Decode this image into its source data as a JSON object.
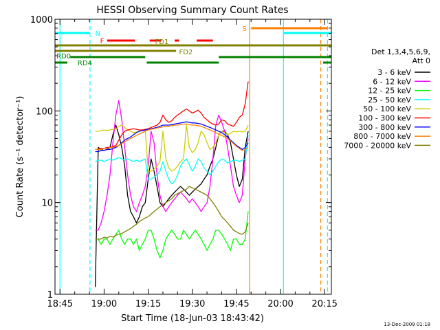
{
  "chart_data": {
    "type": "line",
    "title": "HESSI Observing Summary Count Rates",
    "xlabel": "Start Time (18-Jun-03 18:43:42)",
    "ylabel": "Count Rate (s⁻¹ detector⁻¹)",
    "y_scale": "log",
    "ylim": [
      1,
      1000
    ],
    "xlim_minutes": [
      -1.7,
      92.3
    ],
    "x_ticks": [
      {
        "label": "18:45",
        "minute": 0
      },
      {
        "label": "19:00",
        "minute": 15
      },
      {
        "label": "19:15",
        "minute": 30
      },
      {
        "label": "19:30",
        "minute": 45
      },
      {
        "label": "19:45",
        "minute": 60
      },
      {
        "label": "20:00",
        "minute": 75
      },
      {
        "label": "20:15",
        "minute": 90
      }
    ],
    "y_ticks": [
      {
        "label": "1",
        "value": 1
      },
      {
        "label": "10",
        "value": 10
      },
      {
        "label": "100",
        "value": 100
      },
      {
        "label": "1000",
        "value": 1000
      }
    ],
    "legend": {
      "header": [
        "Det 1,3,4,5,6,9,",
        "Att 0"
      ],
      "position": "right"
    },
    "series": [
      {
        "name": "3 - 6 keV",
        "color": "#000000",
        "x": [
          12,
          13,
          14,
          15,
          16,
          17,
          18,
          19,
          20,
          21,
          22,
          23,
          24,
          25,
          26,
          27,
          28,
          29,
          30,
          31,
          32,
          33,
          34,
          35,
          36,
          37,
          38,
          39,
          40,
          41,
          42,
          43,
          44,
          45,
          46,
          47,
          48,
          49,
          50,
          51,
          52,
          53,
          54,
          55,
          56,
          57,
          58,
          59,
          60,
          61,
          62,
          63,
          64
        ],
        "y": [
          1.2,
          40,
          38,
          37,
          38,
          40,
          55,
          70,
          55,
          40,
          25,
          12,
          8,
          7,
          6,
          7,
          9,
          10,
          18,
          30,
          22,
          15,
          10,
          9,
          10,
          11,
          12,
          13,
          14,
          15,
          14,
          13,
          12,
          13,
          14,
          15,
          16,
          18,
          20,
          25,
          30,
          40,
          55,
          60,
          60,
          55,
          45,
          30,
          20,
          15,
          18,
          40,
          60
        ]
      },
      {
        "name": "6 - 12 keV",
        "color": "#ff00ff",
        "x": [
          12,
          13,
          14,
          15,
          16,
          17,
          18,
          19,
          20,
          21,
          22,
          23,
          24,
          25,
          26,
          27,
          28,
          29,
          30,
          31,
          32,
          33,
          34,
          35,
          36,
          37,
          38,
          39,
          40,
          41,
          42,
          43,
          44,
          45,
          46,
          47,
          48,
          49,
          50,
          51,
          52,
          53,
          54,
          55,
          56,
          57,
          58,
          59,
          60,
          61,
          62,
          63,
          64
        ],
        "y": [
          5,
          5,
          6,
          8,
          12,
          20,
          45,
          90,
          130,
          80,
          40,
          20,
          12,
          9,
          8,
          10,
          12,
          15,
          25,
          60,
          45,
          20,
          12,
          9,
          8,
          9,
          10,
          11,
          12,
          13,
          12,
          11,
          10,
          11,
          10,
          9,
          8,
          9,
          10,
          15,
          30,
          70,
          90,
          75,
          60,
          40,
          25,
          15,
          12,
          10,
          12,
          30,
          50
        ]
      },
      {
        "name": "12 - 25 keV",
        "color": "#00ff00",
        "x": [
          12,
          13,
          14,
          15,
          16,
          17,
          18,
          19,
          20,
          21,
          22,
          23,
          24,
          25,
          26,
          27,
          28,
          29,
          30,
          31,
          32,
          33,
          34,
          35,
          36,
          37,
          38,
          39,
          40,
          41,
          42,
          43,
          44,
          45,
          46,
          47,
          48,
          49,
          50,
          51,
          52,
          53,
          54,
          55,
          56,
          57,
          58,
          59,
          60,
          61,
          62,
          63,
          64
        ],
        "y": [
          4,
          4,
          3.5,
          4,
          4,
          3.5,
          4,
          4.5,
          5,
          4,
          3.5,
          4,
          4,
          3.5,
          4,
          3,
          3.5,
          4,
          5,
          5,
          4,
          3,
          2.5,
          3,
          4,
          4.5,
          5,
          4.5,
          4,
          4,
          5,
          4.5,
          4,
          4.5,
          5,
          4.5,
          4,
          3.5,
          3,
          3.5,
          4,
          5,
          5,
          4.5,
          4,
          3.5,
          3,
          4,
          4,
          3.5,
          3.5,
          4,
          8
        ]
      },
      {
        "name": "25 - 50 keV",
        "color": "#00ffff",
        "x": [
          12,
          13,
          14,
          15,
          16,
          17,
          18,
          19,
          20,
          21,
          22,
          23,
          24,
          25,
          26,
          27,
          28,
          29,
          30,
          31,
          32,
          33,
          34,
          35,
          36,
          37,
          38,
          39,
          40,
          41,
          42,
          43,
          44,
          45,
          46,
          47,
          48,
          49,
          50,
          51,
          52,
          53,
          54,
          55,
          56,
          57,
          58,
          59,
          60,
          61,
          62,
          63,
          64
        ],
        "y": [
          28,
          29,
          29,
          28,
          29,
          30,
          29,
          30,
          31,
          30,
          29,
          30,
          29,
          28,
          29,
          28,
          29,
          30,
          18,
          18,
          19,
          20,
          22,
          28,
          22,
          18,
          16,
          17,
          20,
          25,
          28,
          30,
          26,
          22,
          25,
          30,
          28,
          24,
          22,
          20,
          22,
          25,
          28,
          30,
          29,
          27,
          28,
          29,
          29,
          28,
          29,
          30,
          55
        ]
      },
      {
        "name": "50 - 100 keV",
        "color": "#cccc00",
        "x": [
          12,
          13,
          14,
          15,
          16,
          17,
          18,
          19,
          20,
          21,
          22,
          23,
          24,
          25,
          26,
          27,
          28,
          29,
          30,
          31,
          32,
          33,
          34,
          35,
          36,
          37,
          38,
          39,
          40,
          41,
          42,
          43,
          44,
          45,
          46,
          47,
          48,
          49,
          50,
          51,
          52,
          53,
          54,
          55,
          56,
          57,
          58,
          59,
          60,
          61,
          62,
          63,
          64
        ],
        "y": [
          60,
          60,
          61,
          62,
          61,
          62,
          63,
          64,
          68,
          70,
          66,
          62,
          60,
          58,
          59,
          60,
          61,
          62,
          22,
          22,
          23,
          25,
          28,
          60,
          30,
          24,
          22,
          23,
          25,
          28,
          30,
          70,
          40,
          35,
          38,
          45,
          60,
          55,
          45,
          38,
          40,
          45,
          55,
          60,
          58,
          55,
          57,
          60,
          59,
          60,
          59,
          60,
          70
        ]
      },
      {
        "name": "100 - 300 keV",
        "color": "#ff0000",
        "x": [
          12,
          13,
          14,
          15,
          16,
          17,
          18,
          19,
          20,
          21,
          22,
          23,
          24,
          25,
          26,
          27,
          28,
          29,
          30,
          31,
          32,
          33,
          34,
          35,
          36,
          37,
          38,
          39,
          40,
          41,
          42,
          43,
          44,
          45,
          46,
          47,
          48,
          49,
          50,
          51,
          52,
          53,
          54,
          55,
          56,
          57,
          58,
          59,
          60,
          61,
          62,
          63,
          64
        ],
        "y": [
          38,
          38,
          39,
          39,
          40,
          40,
          41,
          42,
          48,
          55,
          60,
          62,
          63,
          64,
          63,
          62,
          62,
          63,
          64,
          66,
          68,
          70,
          75,
          90,
          80,
          75,
          78,
          85,
          90,
          95,
          100,
          105,
          100,
          95,
          98,
          102,
          95,
          85,
          80,
          75,
          72,
          70,
          72,
          80,
          78,
          72,
          70,
          68,
          75,
          85,
          90,
          120,
          210
        ]
      },
      {
        "name": "300 - 800 keV",
        "color": "#0000ff",
        "x": [
          12,
          13,
          14,
          15,
          16,
          17,
          18,
          19,
          20,
          21,
          22,
          23,
          24,
          25,
          26,
          27,
          28,
          29,
          30,
          31,
          32,
          33,
          34,
          35,
          36,
          37,
          38,
          39,
          40,
          41,
          42,
          43,
          44,
          45,
          46,
          47,
          48,
          49,
          50,
          51,
          52,
          53,
          54,
          55,
          56,
          57,
          58,
          59,
          60,
          61,
          62,
          63,
          64
        ],
        "y": [
          36,
          36,
          37,
          37,
          38,
          38,
          39,
          40,
          42,
          45,
          48,
          50,
          52,
          55,
          58,
          60,
          61,
          62,
          63,
          64,
          65,
          66,
          68,
          70,
          70,
          70,
          71,
          72,
          73,
          74,
          75,
          76,
          75,
          74,
          74,
          73,
          72,
          70,
          68,
          66,
          64,
          62,
          60,
          58,
          55,
          52,
          48,
          45,
          42,
          40,
          38,
          40,
          45
        ]
      },
      {
        "name": "800 - 7000 keV",
        "color": "#ff8000",
        "x": [
          12,
          13,
          14,
          15,
          16,
          17,
          18,
          19,
          20,
          21,
          22,
          23,
          24,
          25,
          26,
          27,
          28,
          29,
          30,
          31,
          32,
          33,
          34,
          35,
          36,
          37,
          38,
          39,
          40,
          41,
          42,
          43,
          44,
          45,
          46,
          47,
          48,
          49,
          50,
          51,
          52,
          53,
          54,
          55,
          56,
          57,
          58,
          59,
          60,
          61,
          62,
          63,
          64
        ],
        "y": [
          38,
          38,
          38,
          39,
          39,
          40,
          40,
          41,
          42,
          44,
          46,
          48,
          50,
          52,
          54,
          56,
          58,
          60,
          62,
          63,
          64,
          65,
          66,
          67,
          68,
          68,
          69,
          70,
          70,
          71,
          72,
          72,
          71,
          70,
          70,
          69,
          68,
          66,
          64,
          62,
          60,
          58,
          56,
          54,
          52,
          50,
          47,
          44,
          41,
          39,
          37,
          38,
          40
        ]
      },
      {
        "name": "7000 - 20000 keV",
        "color": "#808000",
        "x": [
          12,
          13,
          14,
          15,
          16,
          17,
          18,
          19,
          20,
          21,
          22,
          23,
          24,
          25,
          26,
          27,
          28,
          29,
          30,
          31,
          32,
          33,
          34,
          35,
          36,
          37,
          38,
          39,
          40,
          41,
          42,
          43,
          44,
          45,
          46,
          47,
          48,
          49,
          50,
          51,
          52,
          53,
          54,
          55,
          56,
          57,
          58,
          59,
          60,
          61,
          62,
          63,
          64
        ],
        "y": [
          4,
          4,
          4,
          4.2,
          4.1,
          4.3,
          4.2,
          4.4,
          4.5,
          4.6,
          4.8,
          5,
          5.2,
          5.5,
          5.8,
          6.2,
          6.5,
          6.8,
          7,
          7.5,
          8,
          8.5,
          9,
          9.5,
          10,
          10.5,
          11,
          12,
          12.5,
          13,
          13.5,
          14,
          15,
          14.5,
          14,
          13.5,
          13,
          12.5,
          12,
          11,
          10,
          9,
          8,
          7,
          6.5,
          6,
          5.5,
          5,
          4.8,
          4.6,
          4.5,
          4.8,
          6
        ]
      }
    ],
    "annotations": [
      {
        "label": "N",
        "color": "#00ffff",
        "segments": [
          [
            -1.7,
            10.2
          ],
          [
            76,
            92.3
          ]
        ]
      },
      {
        "label": "S",
        "color": "#ff8000",
        "segments": [
          [
            65,
            91
          ]
        ]
      },
      {
        "label": "F",
        "color": "#ff0000",
        "segments": [
          [
            16,
            25.5
          ],
          [
            30.5,
            34.5
          ],
          [
            39,
            40.5
          ],
          [
            46.5,
            52
          ]
        ]
      },
      {
        "label": "FD1",
        "color": "#808000",
        "segments": [
          [
            -1.7,
            92.3
          ]
        ]
      },
      {
        "label": "FD2",
        "color": "#808000",
        "segments": [
          [
            -1.7,
            39.5
          ]
        ]
      },
      {
        "label": "RD0",
        "color": "#008000",
        "segments": [
          [
            3.5,
            29
          ],
          [
            54,
            92.3
          ]
        ]
      },
      {
        "label": "RD4",
        "color": "#008000",
        "segments": [
          [
            -1.7,
            2.5
          ],
          [
            29.5,
            54
          ],
          [
            89.5,
            92.3
          ]
        ]
      }
    ],
    "vertical_lines": [
      {
        "minute": 0,
        "color": "#00ffff",
        "style": "solid"
      },
      {
        "minute": 10.2,
        "color": "#00ffff",
        "style": "dashed"
      },
      {
        "minute": 64.5,
        "color": "#ff8000",
        "style": "solid"
      },
      {
        "minute": 76,
        "color": "#00ffff",
        "style": "solid"
      },
      {
        "minute": 88.7,
        "color": "#ff8000",
        "style": "dashed"
      },
      {
        "minute": 91,
        "color": "#00ffff",
        "style": "dashed"
      }
    ]
  },
  "footer": {
    "timestamp": "13-Dec-2009 01:18"
  }
}
